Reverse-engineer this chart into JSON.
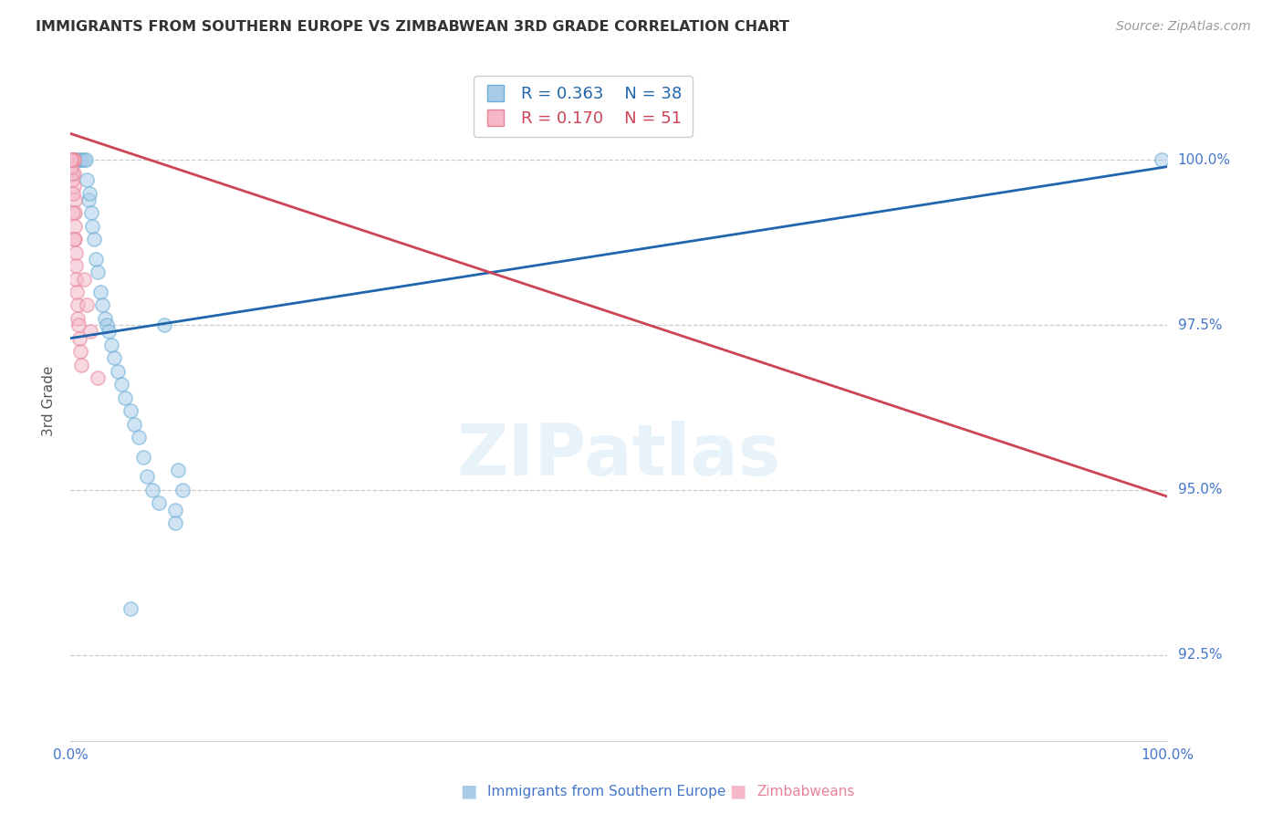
{
  "title": "IMMIGRANTS FROM SOUTHERN EUROPE VS ZIMBABWEAN 3RD GRADE CORRELATION CHART",
  "source": "Source: ZipAtlas.com",
  "ylabel": "3rd Grade",
  "yticks": [
    92.5,
    95.0,
    97.5,
    100.0
  ],
  "ytick_labels": [
    "92.5%",
    "95.0%",
    "97.5%",
    "100.0%"
  ],
  "xlim": [
    0.0,
    100.0
  ],
  "ylim": [
    91.2,
    101.5
  ],
  "legend_r1": "R = 0.363",
  "legend_n1": "N = 38",
  "legend_r2": "R = 0.170",
  "legend_n2": "N = 51",
  "blue_color": "#a8cce8",
  "blue_edge_color": "#6aaed6",
  "pink_color": "#f4b8c8",
  "pink_edge_color": "#e8849a",
  "blue_line_color": "#2166ac",
  "pink_line_color": "#cc4455",
  "grid_color": "#cccccc",
  "title_color": "#333333",
  "source_color": "#999999",
  "tick_label_color": "#4477cc",
  "scatter_alpha": 0.55,
  "marker_size": 120,
  "blue_x": [
    0.3,
    0.5,
    0.8,
    1.0,
    1.2,
    1.4,
    1.5,
    1.6,
    1.7,
    1.85,
    2.0,
    2.1,
    2.3,
    2.5,
    2.7,
    2.9,
    3.1,
    3.3,
    3.5,
    3.7,
    4.0,
    4.3,
    4.6,
    5.0,
    5.5,
    5.8,
    6.2,
    6.6,
    7.0,
    7.5,
    8.0,
    8.5,
    9.5,
    9.5,
    9.8,
    10.2,
    5.5,
    99.5
  ],
  "blue_y": [
    100.0,
    100.0,
    100.0,
    100.0,
    100.0,
    100.0,
    99.7,
    99.4,
    99.5,
    99.2,
    99.0,
    98.8,
    98.5,
    98.3,
    98.0,
    97.8,
    97.6,
    97.5,
    97.4,
    97.2,
    97.0,
    96.8,
    96.6,
    96.4,
    96.2,
    96.0,
    95.8,
    95.5,
    95.2,
    95.0,
    94.8,
    97.5,
    94.7,
    94.5,
    95.3,
    95.0,
    93.2,
    100.0
  ],
  "pink_x": [
    0.02,
    0.03,
    0.04,
    0.05,
    0.06,
    0.07,
    0.08,
    0.09,
    0.1,
    0.11,
    0.12,
    0.13,
    0.14,
    0.15,
    0.16,
    0.17,
    0.18,
    0.19,
    0.2,
    0.22,
    0.24,
    0.26,
    0.28,
    0.3,
    0.32,
    0.35,
    0.38,
    0.4,
    0.43,
    0.45,
    0.48,
    0.5,
    0.55,
    0.6,
    0.65,
    0.7,
    0.8,
    0.9,
    1.0,
    1.2,
    1.5,
    1.8,
    2.5,
    0.25,
    0.3,
    0.2,
    0.15,
    0.1,
    0.08,
    0.06,
    0.04
  ],
  "pink_y": [
    100.0,
    100.0,
    100.0,
    100.0,
    100.0,
    100.0,
    100.0,
    100.0,
    100.0,
    100.0,
    100.0,
    100.0,
    100.0,
    100.0,
    100.0,
    100.0,
    100.0,
    100.0,
    100.0,
    100.0,
    100.0,
    100.0,
    100.0,
    99.8,
    99.6,
    99.4,
    99.2,
    99.0,
    98.8,
    98.6,
    98.4,
    98.2,
    98.0,
    97.8,
    97.6,
    97.5,
    97.3,
    97.1,
    96.9,
    98.2,
    97.8,
    97.4,
    96.7,
    99.2,
    98.8,
    99.5,
    99.7,
    99.8,
    99.9,
    100.0,
    100.0
  ]
}
